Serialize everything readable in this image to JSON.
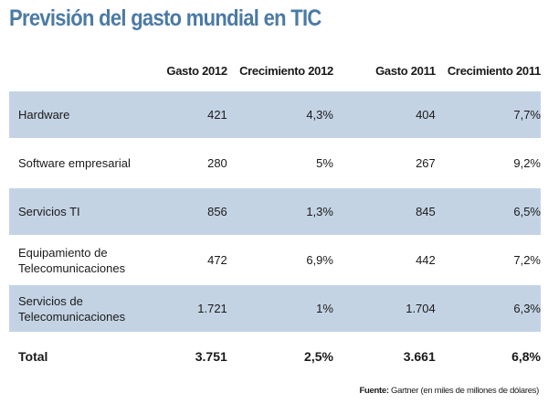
{
  "chart_data": {
    "type": "table",
    "title": "Previsión del gasto mundial en TIC",
    "columns": [
      "",
      "Gasto 2012",
      "Crecimiento 2012",
      "Gasto 2011",
      "Crecimiento 2011"
    ],
    "rows": [
      {
        "label": "Hardware",
        "values": [
          "421",
          "4,3%",
          "404",
          "7,7%"
        ]
      },
      {
        "label": "Software empresarial",
        "values": [
          "280",
          "5%",
          "267",
          "9,2%"
        ]
      },
      {
        "label": "Servicios TI",
        "values": [
          "856",
          "1,3%",
          "845",
          "6,5%"
        ]
      },
      {
        "label": "Equipamiento de Telecomunicaciones",
        "values": [
          "472",
          "6,9%",
          "442",
          "7,2%"
        ]
      },
      {
        "label": "Servicios de Telecomunicaciones",
        "values": [
          "1.721",
          "1%",
          "1.704",
          "6,3%"
        ]
      }
    ],
    "total": {
      "label": "Total",
      "values": [
        "3.751",
        "2,5%",
        "3.661",
        "6,8%"
      ]
    },
    "source_label": "Fuente:",
    "source_text": "Gartner (en miles de millones de dólares)",
    "colors": {
      "title": "#4b7aa6",
      "row_shade": "#c4d3e4"
    }
  }
}
